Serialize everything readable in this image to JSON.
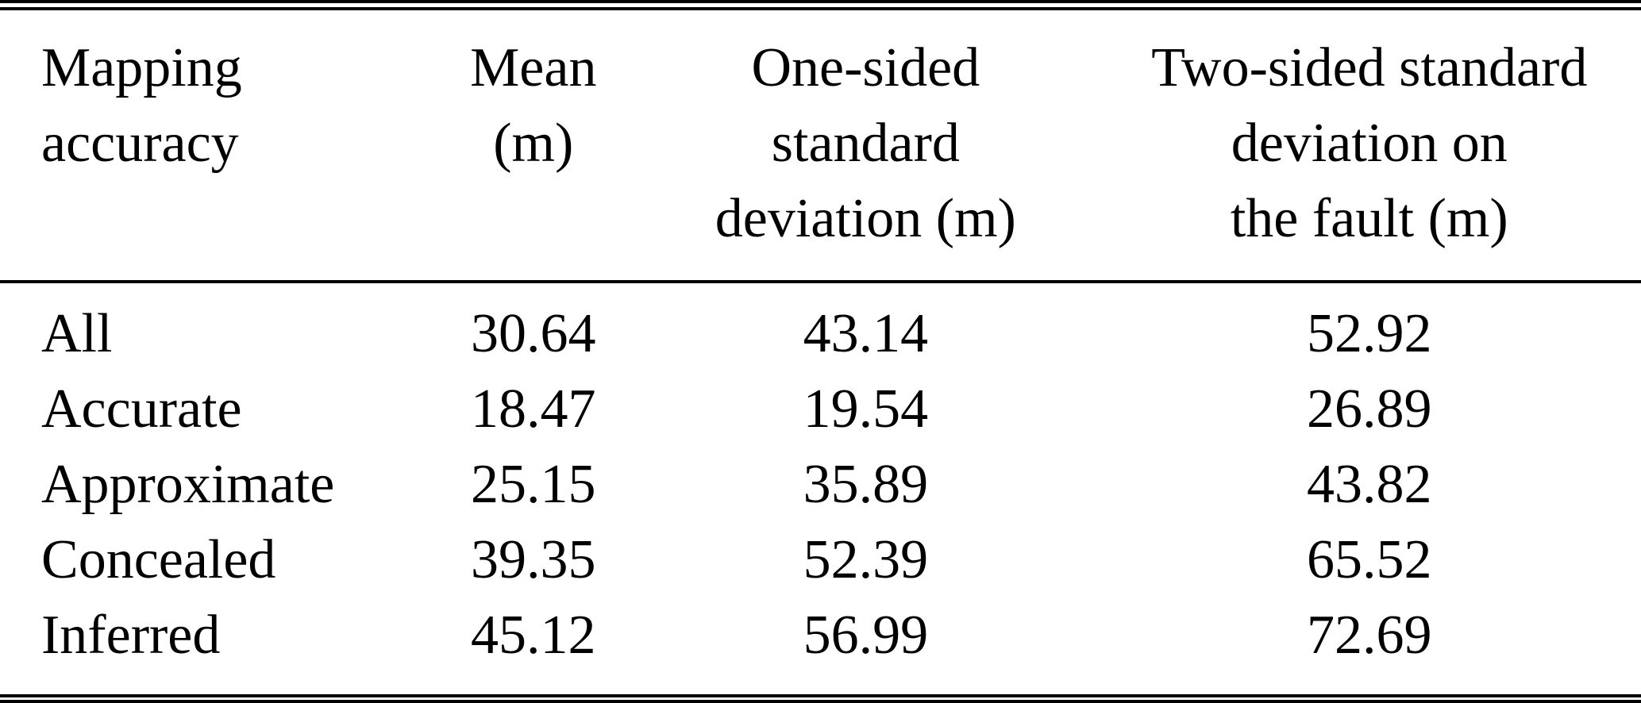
{
  "table": {
    "columns": [
      {
        "name": "mapping-accuracy",
        "lines": [
          "Mapping",
          "accuracy"
        ]
      },
      {
        "name": "mean",
        "lines": [
          "Mean",
          "(m)"
        ]
      },
      {
        "name": "one-sided-std",
        "lines": [
          "One-sided",
          "standard",
          "deviation (m)"
        ]
      },
      {
        "name": "two-sided-std",
        "lines": [
          "Two-sided standard",
          "deviation on",
          "the fault (m)"
        ]
      }
    ],
    "rows": [
      {
        "label": "All",
        "values": [
          "30.64",
          "43.14",
          "52.92"
        ]
      },
      {
        "label": "Accurate",
        "values": [
          "18.47",
          "19.54",
          "26.89"
        ]
      },
      {
        "label": "Approximate",
        "values": [
          "25.15",
          "35.89",
          "43.82"
        ]
      },
      {
        "label": "Concealed",
        "values": [
          "39.35",
          "52.39",
          "65.52"
        ]
      },
      {
        "label": "Inferred",
        "values": [
          "45.12",
          "56.99",
          "72.69"
        ]
      }
    ]
  },
  "colors": {
    "text": "#000000",
    "background": "#ffffff",
    "rule": "#000000"
  },
  "chart_data": {
    "type": "table",
    "title": "",
    "column_headers": [
      "Mapping accuracy",
      "Mean (m)",
      "One-sided standard deviation (m)",
      "Two-sided standard deviation on the fault (m)"
    ],
    "categories": [
      "All",
      "Accurate",
      "Approximate",
      "Concealed",
      "Inferred"
    ],
    "series": [
      {
        "name": "Mean (m)",
        "values": [
          30.64,
          18.47,
          25.15,
          39.35,
          45.12
        ]
      },
      {
        "name": "One-sided standard deviation (m)",
        "values": [
          43.14,
          19.54,
          35.89,
          52.39,
          56.99
        ]
      },
      {
        "name": "Two-sided standard deviation on the fault (m)",
        "values": [
          52.92,
          26.89,
          43.82,
          65.52,
          72.69
        ]
      }
    ]
  }
}
